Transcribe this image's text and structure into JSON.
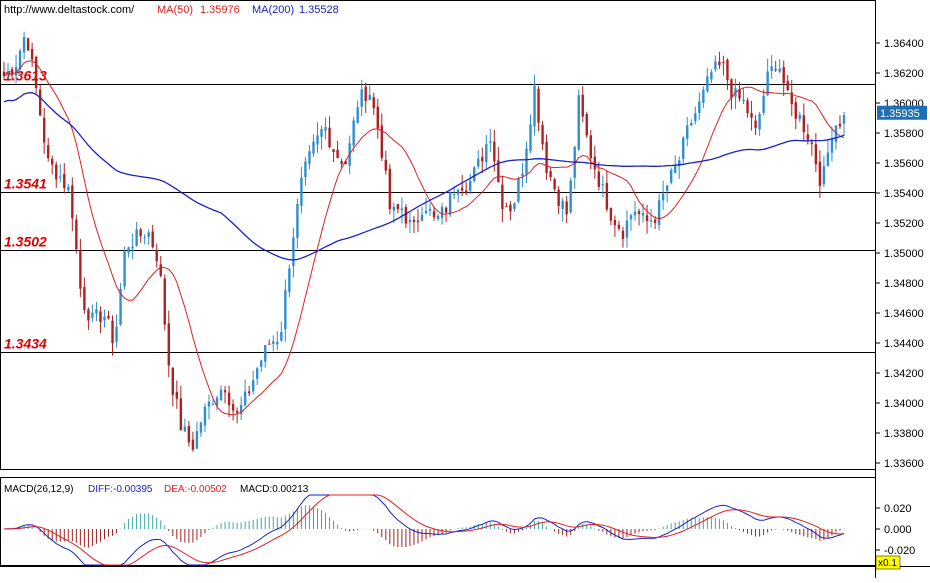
{
  "header": {
    "url": "http://www.deltastock.com/",
    "ma50_label": "MA(50)",
    "ma50_value": "1.35976",
    "ma200_label": "MA(200)",
    "ma200_value": "1.35528"
  },
  "macd_header": {
    "name": "MACD(26,12,9)",
    "diff": "DIFF:-0.00395",
    "dea": "DEA:-0.00502",
    "macd": "MACD:0.00213"
  },
  "current_price_label": "1.35935",
  "macd_scale_badge": "x0.1",
  "colors": {
    "up_candle": "#2e8fcf",
    "down_candle": "#b02020",
    "ma50": "#e02020",
    "ma200": "#1a22c8",
    "level_text": "#e00000",
    "price_badge_bg": "#1f6fb5",
    "badge_bg": "#ffff00"
  },
  "chart_data": [
    {
      "type": "candlestick",
      "title": "",
      "xlabel": "",
      "ylabel": "",
      "ylim": [
        1.335,
        1.366
      ],
      "yticks": [
        "1.36400",
        "1.36200",
        "1.36000",
        "1.35800",
        "1.35600",
        "1.35400",
        "1.35200",
        "1.35000",
        "1.34800",
        "1.34600",
        "1.34400",
        "1.34200",
        "1.34000",
        "1.33800",
        "1.33600"
      ],
      "horizontal_levels": [
        {
          "label": "1.3613",
          "value": 1.3613
        },
        {
          "label": "1.3541",
          "value": 1.3541
        },
        {
          "label": "1.3502",
          "value": 1.3502
        },
        {
          "label": "1.3434",
          "value": 1.3434
        }
      ],
      "current_price": 1.35935,
      "grid": false,
      "series": [
        {
          "name": "MA(50)",
          "kind": "line"
        },
        {
          "name": "MA(200)",
          "kind": "line"
        }
      ],
      "close_path": [
        1.3618,
        1.3625,
        1.3648,
        1.3605,
        1.356,
        1.3552,
        1.354,
        1.347,
        1.3455,
        1.346,
        1.344,
        1.3505,
        1.351,
        1.3515,
        1.3495,
        1.342,
        1.3385,
        1.337,
        1.3392,
        1.3405,
        1.3412,
        1.339,
        1.3405,
        1.3425,
        1.344,
        1.3445,
        1.3505,
        1.355,
        1.357,
        1.3585,
        1.3566,
        1.356,
        1.36,
        1.361,
        1.3578,
        1.3525,
        1.353,
        1.3514,
        1.3535,
        1.352,
        1.353,
        1.3548,
        1.3545,
        1.356,
        1.358,
        1.3535,
        1.353,
        1.356,
        1.361,
        1.356,
        1.354,
        1.3525,
        1.36,
        1.3568,
        1.3545,
        1.3525,
        1.3515,
        1.353,
        1.352,
        1.3525,
        1.3545,
        1.356,
        1.3585,
        1.36,
        1.362,
        1.3625,
        1.3605,
        1.36,
        1.358,
        1.3615,
        1.363,
        1.36,
        1.359,
        1.3575,
        1.3545,
        1.3585,
        1.359
      ]
    },
    {
      "type": "line",
      "title": "",
      "ylim": [
        -0.03,
        0.03
      ],
      "yticks": [
        "0.020",
        "0.000",
        "-0.020"
      ],
      "series": [
        {
          "name": "DIFF",
          "values_note": "derived",
          "last": -0.00395
        },
        {
          "name": "DEA",
          "last": -0.00502
        },
        {
          "name": "MACD",
          "kind": "histogram",
          "last": 0.00213
        }
      ]
    }
  ]
}
